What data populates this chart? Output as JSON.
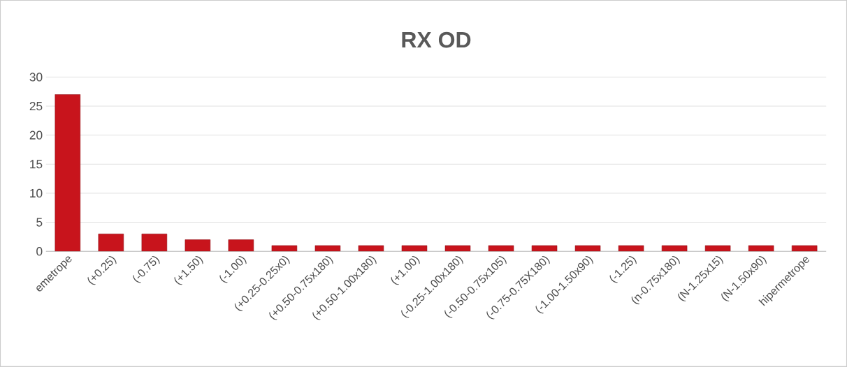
{
  "chart_data": {
    "type": "bar",
    "title": "RX OD",
    "categories": [
      "emetrope",
      "(+0.25)",
      "(-0.75)",
      "(+1.50)",
      "(-1.00)",
      "(+0.25-0.25x0)",
      "(+0.50-0.75x180)",
      "(+0.50-1.00x180)",
      "(+1.00)",
      "(-0.25-1.00x180)",
      "(-0.50-0.75x105)",
      "(-0.75-0.75X180)",
      "(-1.00-1.50x90)",
      "(-1.25)",
      "(n-0.75x180)",
      "(N-1.25x15)",
      "(N-1.50x90)",
      "hipermetrope"
    ],
    "values": [
      27,
      3,
      3,
      2,
      2,
      1,
      1,
      1,
      1,
      1,
      1,
      1,
      1,
      1,
      1,
      1,
      1,
      1
    ],
    "color": "#c8141c",
    "ylim": [
      0,
      30
    ],
    "yticks": [
      0,
      5,
      10,
      15,
      20,
      25,
      30
    ],
    "grid": "y"
  }
}
